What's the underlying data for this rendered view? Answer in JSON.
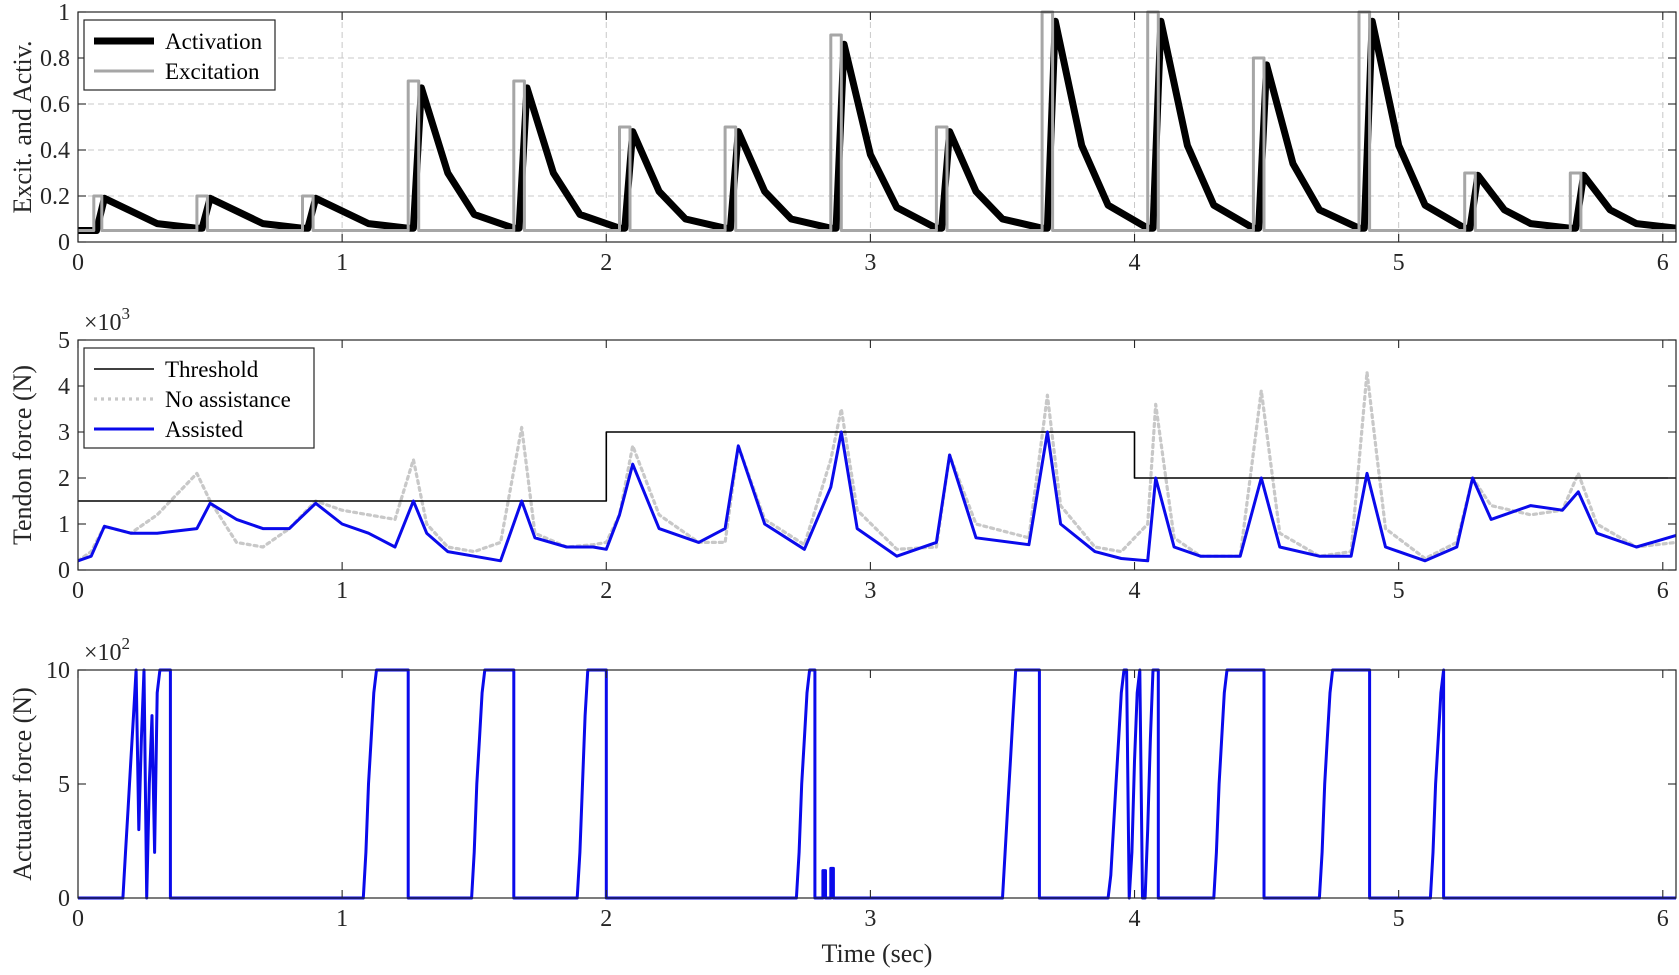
{
  "chart_data": [
    {
      "type": "line",
      "ylabel": "Excit. and Activ.",
      "xlabel": "",
      "xlim": [
        0,
        6.05
      ],
      "ylim": [
        0,
        1
      ],
      "xticks": [
        0,
        1,
        2,
        3,
        4,
        5,
        6
      ],
      "yticks": [
        0,
        0.2,
        0.4,
        0.6,
        0.8,
        1
      ],
      "ytick_labels": [
        "0",
        "0.2",
        "0.4",
        "0.6",
        "0.8",
        "1"
      ],
      "grid": true,
      "legend": "top-left",
      "series": [
        {
          "name": "Activation",
          "color": "#000000",
          "x": [
            0,
            0.07,
            0.1,
            0.3,
            0.45,
            0.47,
            0.5,
            0.7,
            0.85,
            0.87,
            0.9,
            1.1,
            1.25,
            1.27,
            1.3,
            1.4,
            1.5,
            1.65,
            1.67,
            1.7,
            1.8,
            1.9,
            2.05,
            2.07,
            2.1,
            2.2,
            2.3,
            2.45,
            2.47,
            2.5,
            2.6,
            2.7,
            2.85,
            2.87,
            2.9,
            3.0,
            3.1,
            3.25,
            3.27,
            3.3,
            3.4,
            3.5,
            3.65,
            3.67,
            3.7,
            3.8,
            3.9,
            4.05,
            4.07,
            4.1,
            4.2,
            4.3,
            4.45,
            4.47,
            4.5,
            4.6,
            4.7,
            4.85,
            4.87,
            4.9,
            5.0,
            5.1,
            5.25,
            5.27,
            5.3,
            5.4,
            5.5,
            5.65,
            5.67,
            5.7,
            5.8,
            5.9,
            6.05
          ],
          "y": [
            0.05,
            0.05,
            0.19,
            0.08,
            0.06,
            0.06,
            0.19,
            0.08,
            0.06,
            0.06,
            0.19,
            0.08,
            0.06,
            0.06,
            0.67,
            0.3,
            0.12,
            0.06,
            0.06,
            0.67,
            0.3,
            0.12,
            0.06,
            0.06,
            0.48,
            0.22,
            0.1,
            0.06,
            0.06,
            0.48,
            0.22,
            0.1,
            0.06,
            0.06,
            0.86,
            0.38,
            0.15,
            0.06,
            0.06,
            0.48,
            0.22,
            0.1,
            0.06,
            0.06,
            0.96,
            0.42,
            0.16,
            0.06,
            0.06,
            0.96,
            0.42,
            0.16,
            0.06,
            0.06,
            0.77,
            0.34,
            0.14,
            0.06,
            0.06,
            0.96,
            0.42,
            0.16,
            0.06,
            0.06,
            0.29,
            0.14,
            0.08,
            0.06,
            0.06,
            0.29,
            0.14,
            0.08,
            0.06
          ]
        },
        {
          "name": "Excitation",
          "color": "#a6a6a6",
          "x": [
            0,
            0.06,
            0.06,
            0.09,
            0.09,
            0.45,
            0.45,
            0.49,
            0.49,
            0.85,
            0.85,
            0.89,
            0.89,
            1.25,
            1.25,
            1.29,
            1.29,
            1.65,
            1.65,
            1.69,
            1.69,
            2.05,
            2.05,
            2.09,
            2.09,
            2.45,
            2.45,
            2.49,
            2.49,
            2.85,
            2.85,
            2.89,
            2.89,
            3.25,
            3.25,
            3.29,
            3.29,
            3.65,
            3.65,
            3.69,
            3.69,
            4.05,
            4.05,
            4.09,
            4.09,
            4.45,
            4.45,
            4.49,
            4.49,
            4.85,
            4.85,
            4.89,
            4.89,
            5.25,
            5.25,
            5.29,
            5.29,
            5.65,
            5.65,
            5.69,
            5.69,
            6.05
          ],
          "y": [
            0.05,
            0.05,
            0.2,
            0.2,
            0.05,
            0.05,
            0.2,
            0.2,
            0.05,
            0.05,
            0.2,
            0.2,
            0.05,
            0.05,
            0.7,
            0.7,
            0.05,
            0.05,
            0.7,
            0.7,
            0.05,
            0.05,
            0.5,
            0.5,
            0.05,
            0.05,
            0.5,
            0.5,
            0.05,
            0.05,
            0.9,
            0.9,
            0.05,
            0.05,
            0.5,
            0.5,
            0.05,
            0.05,
            1.0,
            1.0,
            0.05,
            0.05,
            1.0,
            1.0,
            0.05,
            0.05,
            0.8,
            0.8,
            0.05,
            0.05,
            1.0,
            1.0,
            0.05,
            0.05,
            0.3,
            0.3,
            0.05,
            0.05,
            0.3,
            0.3,
            0.05,
            0.05
          ]
        }
      ]
    },
    {
      "type": "line",
      "ylabel": "Tendon force (N)",
      "xlabel": "",
      "exponent_label": "×10",
      "exponent_power": "3",
      "xlim": [
        0,
        6.05
      ],
      "ylim": [
        0,
        5
      ],
      "xticks": [
        0,
        1,
        2,
        3,
        4,
        5,
        6
      ],
      "yticks": [
        0,
        1,
        2,
        3,
        4,
        5
      ],
      "ytick_labels": [
        "0",
        "1",
        "2",
        "3",
        "4",
        "5"
      ],
      "grid": false,
      "legend": "top-left",
      "series": [
        {
          "name": "Threshold",
          "color": "#000000",
          "x": [
            0,
            2,
            2,
            4,
            4,
            6.05
          ],
          "y": [
            1.5,
            1.5,
            3,
            3,
            2,
            2
          ]
        },
        {
          "name": "No assistance",
          "color": "#c8c8c8",
          "x": [
            0,
            0.05,
            0.1,
            0.2,
            0.3,
            0.45,
            0.5,
            0.6,
            0.7,
            0.8,
            0.9,
            1.0,
            1.1,
            1.2,
            1.27,
            1.32,
            1.4,
            1.5,
            1.6,
            1.68,
            1.73,
            1.85,
            1.95,
            2.0,
            2.05,
            2.1,
            2.2,
            2.35,
            2.45,
            2.5,
            2.6,
            2.75,
            2.85,
            2.89,
            2.95,
            3.1,
            3.25,
            3.3,
            3.4,
            3.6,
            3.67,
            3.72,
            3.85,
            3.95,
            4.05,
            4.08,
            4.15,
            4.25,
            4.4,
            4.48,
            4.55,
            4.7,
            4.82,
            4.88,
            4.95,
            5.1,
            5.22,
            5.28,
            5.35,
            5.5,
            5.62,
            5.68,
            5.75,
            5.9,
            6.05
          ],
          "y": [
            0.2,
            0.4,
            0.95,
            0.8,
            1.2,
            2.1,
            1.5,
            0.6,
            0.5,
            0.9,
            1.5,
            1.3,
            1.2,
            1.1,
            2.4,
            1.0,
            0.5,
            0.4,
            0.6,
            3.1,
            0.8,
            0.5,
            0.55,
            0.6,
            1.2,
            2.7,
            1.2,
            0.6,
            0.6,
            2.7,
            1.1,
            0.55,
            2.4,
            3.5,
            1.3,
            0.45,
            0.5,
            2.5,
            1.0,
            0.7,
            3.8,
            1.4,
            0.5,
            0.4,
            1.0,
            3.6,
            0.7,
            0.3,
            0.3,
            3.9,
            0.8,
            0.3,
            0.4,
            4.3,
            0.9,
            0.25,
            0.6,
            2.0,
            1.4,
            1.2,
            1.3,
            2.1,
            1.0,
            0.5,
            0.6
          ]
        },
        {
          "name": "Assisted",
          "color": "#0a0aeb",
          "x": [
            0,
            0.05,
            0.1,
            0.2,
            0.3,
            0.45,
            0.5,
            0.6,
            0.7,
            0.8,
            0.9,
            1.0,
            1.1,
            1.2,
            1.27,
            1.32,
            1.4,
            1.5,
            1.6,
            1.68,
            1.73,
            1.85,
            1.95,
            2.0,
            2.05,
            2.1,
            2.2,
            2.35,
            2.45,
            2.5,
            2.6,
            2.75,
            2.85,
            2.89,
            2.95,
            3.1,
            3.25,
            3.3,
            3.4,
            3.6,
            3.67,
            3.72,
            3.85,
            3.95,
            4.05,
            4.08,
            4.15,
            4.25,
            4.4,
            4.48,
            4.55,
            4.7,
            4.82,
            4.88,
            4.95,
            5.1,
            5.22,
            5.28,
            5.35,
            5.5,
            5.62,
            5.68,
            5.75,
            5.9,
            6.05
          ],
          "y": [
            0.2,
            0.3,
            0.95,
            0.8,
            0.8,
            0.9,
            1.45,
            1.1,
            0.9,
            0.9,
            1.45,
            1.0,
            0.8,
            0.5,
            1.5,
            0.8,
            0.4,
            0.3,
            0.2,
            1.5,
            0.7,
            0.5,
            0.5,
            0.45,
            1.2,
            2.3,
            0.9,
            0.6,
            0.9,
            2.7,
            1.0,
            0.45,
            1.8,
            3.0,
            0.9,
            0.3,
            0.6,
            2.5,
            0.7,
            0.55,
            3.0,
            1.0,
            0.4,
            0.25,
            0.2,
            2.0,
            0.5,
            0.3,
            0.3,
            2.0,
            0.5,
            0.3,
            0.3,
            2.1,
            0.5,
            0.2,
            0.5,
            2.0,
            1.1,
            1.4,
            1.3,
            1.7,
            0.8,
            0.5,
            0.75
          ]
        }
      ]
    },
    {
      "type": "line",
      "ylabel": "Actuator force (N)",
      "xlabel": "Time (sec)",
      "exponent_label": "×10",
      "exponent_power": "2",
      "xlim": [
        0,
        6.05
      ],
      "ylim": [
        0,
        10
      ],
      "xticks": [
        0,
        1,
        2,
        3,
        4,
        5,
        6
      ],
      "yticks": [
        0,
        5,
        10
      ],
      "ytick_labels": [
        "0",
        "5",
        "10"
      ],
      "grid": false,
      "series": [
        {
          "name": "",
          "color": "#0a0aeb",
          "x": [
            0,
            0.17,
            0.18,
            0.19,
            0.2,
            0.21,
            0.22,
            0.23,
            0.24,
            0.25,
            0.26,
            0.27,
            0.28,
            0.29,
            0.3,
            0.31,
            0.32,
            0.34,
            0.35,
            0.35,
            1.08,
            1.09,
            1.1,
            1.11,
            1.12,
            1.13,
            1.14,
            1.25,
            1.25,
            1.49,
            1.5,
            1.51,
            1.52,
            1.53,
            1.54,
            1.55,
            1.65,
            1.65,
            1.89,
            1.9,
            1.91,
            1.92,
            1.93,
            1.94,
            2.0,
            2.0,
            2.72,
            2.73,
            2.74,
            2.75,
            2.76,
            2.77,
            2.78,
            2.79,
            2.79,
            2.82,
            2.82,
            2.83,
            2.83,
            2.85,
            2.85,
            2.86,
            2.86,
            3.5,
            3.51,
            3.52,
            3.53,
            3.54,
            3.55,
            3.56,
            3.64,
            3.64,
            3.9,
            3.91,
            3.92,
            3.93,
            3.94,
            3.95,
            3.96,
            3.97,
            3.98,
            3.99,
            4.0,
            4.01,
            4.02,
            4.03,
            4.04,
            4.05,
            4.06,
            4.07,
            4.08,
            4.09,
            4.09,
            4.3,
            4.31,
            4.32,
            4.33,
            4.34,
            4.35,
            4.36,
            4.49,
            4.49,
            4.7,
            4.71,
            4.72,
            4.73,
            4.74,
            4.75,
            4.76,
            4.89,
            4.89,
            5.12,
            5.13,
            5.14,
            5.15,
            5.16,
            5.17,
            5.17,
            6.05
          ],
          "y": [
            0,
            0,
            2,
            4,
            6,
            8,
            10,
            3,
            7,
            10,
            0,
            5,
            8,
            2,
            9,
            10,
            10,
            10,
            10,
            0,
            0,
            2,
            5,
            7,
            9,
            10,
            10,
            10,
            0,
            0,
            2,
            5,
            7,
            9,
            10,
            10,
            10,
            0,
            0,
            2,
            5,
            8,
            10,
            10,
            10,
            0,
            0,
            2,
            5,
            7,
            9,
            10,
            10,
            10,
            0,
            0,
            1.2,
            1.2,
            0,
            0,
            1.3,
            1.3,
            0,
            0,
            2,
            4,
            6,
            8,
            10,
            10,
            10,
            0,
            0,
            1,
            3,
            5,
            7,
            9,
            10,
            10,
            0,
            2,
            6,
            9,
            10,
            0,
            0,
            3,
            7,
            10,
            10,
            10,
            0,
            0,
            2,
            5,
            7,
            9,
            10,
            10,
            10,
            0,
            0,
            2,
            5,
            7,
            9,
            10,
            10,
            10,
            0,
            0,
            2,
            5,
            7,
            9,
            10,
            0,
            0
          ]
        }
      ]
    }
  ]
}
